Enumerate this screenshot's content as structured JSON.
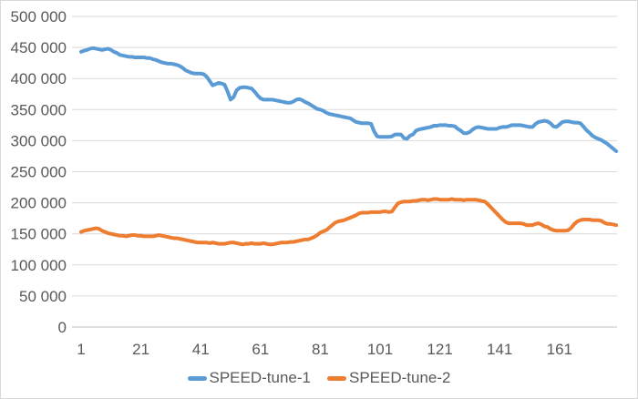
{
  "chart_data": {
    "type": "line",
    "title": "",
    "xlabel": "",
    "ylabel": "",
    "grid": true,
    "legend_position": "bottom",
    "ylim": [
      0,
      500000
    ],
    "y_tick_interval": 50000,
    "colors": {
      "gridline": "#d9d9d9",
      "axis_line": "#bfbfbf",
      "tick_text": "#595959",
      "chart_border": "#d9d9d9"
    },
    "y_ticks": [
      {
        "value": 0,
        "label": "0"
      },
      {
        "value": 50000,
        "label": "50 000"
      },
      {
        "value": 100000,
        "label": "100 000"
      },
      {
        "value": 150000,
        "label": "150 000"
      },
      {
        "value": 200000,
        "label": "200 000"
      },
      {
        "value": 250000,
        "label": "250 000"
      },
      {
        "value": 300000,
        "label": "300 000"
      },
      {
        "value": 350000,
        "label": "350 000"
      },
      {
        "value": 400000,
        "label": "400 000"
      },
      {
        "value": 450000,
        "label": "450 000"
      },
      {
        "value": 500000,
        "label": "500 000"
      }
    ],
    "x_ticks": [
      {
        "index": 1,
        "label": "1"
      },
      {
        "index": 21,
        "label": "21"
      },
      {
        "index": 41,
        "label": "41"
      },
      {
        "index": 61,
        "label": "61"
      },
      {
        "index": 81,
        "label": "81"
      },
      {
        "index": 101,
        "label": "101"
      },
      {
        "index": 121,
        "label": "121"
      },
      {
        "index": 141,
        "label": "141"
      },
      {
        "index": 161,
        "label": "161"
      }
    ],
    "series": [
      {
        "name": "SPEED-tune-1",
        "color": "#5b9bd5",
        "values": [
          443000,
          445000,
          446000,
          448000,
          449000,
          448000,
          447000,
          446000,
          447000,
          448000,
          446000,
          443000,
          441000,
          438000,
          437000,
          436000,
          435000,
          435000,
          434000,
          434000,
          434000,
          434000,
          433000,
          433000,
          431000,
          430000,
          428000,
          426000,
          425000,
          424000,
          424000,
          423000,
          422000,
          420000,
          417000,
          413000,
          411000,
          409000,
          408000,
          408000,
          408000,
          407000,
          403000,
          396000,
          389000,
          391000,
          393000,
          392000,
          390000,
          379000,
          366000,
          370000,
          381000,
          385000,
          386000,
          386000,
          385000,
          384000,
          379000,
          373000,
          368000,
          366000,
          366000,
          366000,
          366000,
          365000,
          364000,
          363000,
          362000,
          361000,
          361000,
          363000,
          366000,
          367000,
          365000,
          362000,
          360000,
          357000,
          354000,
          351000,
          350000,
          348000,
          345000,
          343000,
          342000,
          341000,
          340000,
          339000,
          338000,
          337000,
          336000,
          333000,
          330000,
          329000,
          328000,
          328000,
          328000,
          327000,
          315000,
          307000,
          306000,
          306000,
          306000,
          306000,
          307000,
          310000,
          310000,
          310000,
          304000,
          303000,
          308000,
          310000,
          316000,
          318000,
          319000,
          320000,
          321000,
          322000,
          324000,
          324000,
          325000,
          325000,
          325000,
          324000,
          324000,
          323000,
          319000,
          316000,
          312000,
          312000,
          314000,
          318000,
          321000,
          322000,
          321000,
          320000,
          319000,
          319000,
          319000,
          319000,
          321000,
          322000,
          322000,
          323000,
          325000,
          325000,
          325000,
          325000,
          324000,
          323000,
          322000,
          322000,
          327000,
          330000,
          331000,
          332000,
          331000,
          328000,
          323000,
          322000,
          326000,
          330000,
          331000,
          331000,
          330000,
          329000,
          329000,
          328000,
          323000,
          317000,
          313000,
          308000,
          305000,
          303000,
          301000,
          298000,
          295000,
          291000,
          287000,
          283000
        ]
      },
      {
        "name": "SPEED-tune-2",
        "color": "#ed7d31",
        "values": [
          153000,
          155000,
          156000,
          157000,
          158000,
          159000,
          158000,
          155000,
          153000,
          151000,
          150000,
          149000,
          148000,
          147000,
          147000,
          146000,
          147000,
          148000,
          148000,
          147000,
          147000,
          146000,
          146000,
          146000,
          146000,
          147000,
          148000,
          147000,
          146000,
          145000,
          144000,
          143000,
          143000,
          142000,
          141000,
          140000,
          139000,
          138000,
          137000,
          136000,
          136000,
          136000,
          136000,
          135000,
          136000,
          135000,
          134000,
          134000,
          134000,
          135000,
          136000,
          136000,
          135000,
          134000,
          133000,
          134000,
          134000,
          135000,
          134000,
          134000,
          134000,
          135000,
          134000,
          133000,
          133000,
          134000,
          135000,
          136000,
          136000,
          136000,
          137000,
          137000,
          138000,
          139000,
          140000,
          141000,
          141000,
          143000,
          145000,
          148000,
          152000,
          154000,
          156000,
          160000,
          164000,
          168000,
          170000,
          171000,
          172000,
          174000,
          176000,
          178000,
          180000,
          183000,
          184000,
          184000,
          184000,
          185000,
          185000,
          185000,
          185000,
          186000,
          186000,
          185000,
          186000,
          193000,
          199000,
          201000,
          202000,
          202000,
          202000,
          203000,
          203000,
          204000,
          205000,
          205000,
          204000,
          205000,
          206000,
          206000,
          205000,
          205000,
          205000,
          205000,
          206000,
          205000,
          205000,
          205000,
          204000,
          205000,
          205000,
          205000,
          205000,
          204000,
          203000,
          202000,
          198000,
          193000,
          188000,
          183000,
          178000,
          173000,
          169000,
          167000,
          167000,
          167000,
          167000,
          167000,
          166000,
          164000,
          164000,
          164000,
          166000,
          167000,
          165000,
          162000,
          161000,
          158000,
          156000,
          155000,
          155000,
          155000,
          155000,
          156000,
          160000,
          166000,
          170000,
          172000,
          173000,
          173000,
          173000,
          172000,
          172000,
          172000,
          171000,
          168000,
          166000,
          166000,
          165000,
          164000
        ]
      }
    ]
  }
}
